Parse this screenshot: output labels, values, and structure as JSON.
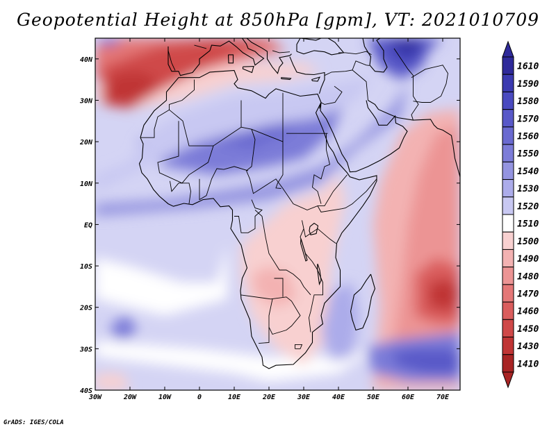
{
  "title": "Geopotential Height at 850hPa [gpm], VT: 2021010709",
  "credit": "GrADS: IGES/COLA",
  "map": {
    "lon_range": [
      -30,
      75
    ],
    "lat_range": [
      -40,
      45
    ],
    "variable": "geopotential height at 850hPa",
    "units": "gpm",
    "valid_time": "2021010709",
    "lon_ticks": [
      {
        "value": -30,
        "label": "30W"
      },
      {
        "value": -20,
        "label": "20W"
      },
      {
        "value": -10,
        "label": "10W"
      },
      {
        "value": 0,
        "label": "0"
      },
      {
        "value": 10,
        "label": "10E"
      },
      {
        "value": 20,
        "label": "20E"
      },
      {
        "value": 30,
        "label": "30E"
      },
      {
        "value": 40,
        "label": "40E"
      },
      {
        "value": 50,
        "label": "50E"
      },
      {
        "value": 60,
        "label": "60E"
      },
      {
        "value": 70,
        "label": "70E"
      }
    ],
    "lat_ticks": [
      {
        "value": 40,
        "label": "40N"
      },
      {
        "value": 30,
        "label": "30N"
      },
      {
        "value": 20,
        "label": "20N"
      },
      {
        "value": 10,
        "label": "10N"
      },
      {
        "value": 0,
        "label": "EQ"
      },
      {
        "value": -10,
        "label": "10S"
      },
      {
        "value": -20,
        "label": "20S"
      },
      {
        "value": -30,
        "label": "30S"
      },
      {
        "value": -40,
        "label": "40S"
      }
    ],
    "features": [
      {
        "name": "high-center-middle-east",
        "lon": 59,
        "lat": 42,
        "value": 1610
      },
      {
        "name": "high-belt-sahara",
        "lon": 15,
        "lat": 22,
        "value": 1560
      },
      {
        "name": "low-belt-mediterranean",
        "lon": 0,
        "lat": 36,
        "value": 1450
      },
      {
        "name": "low-center-atlantic-northwest",
        "lon": -20,
        "lat": 31,
        "value": 1430
      },
      {
        "name": "low-center-indian-ocean",
        "lon": 70,
        "lat": -17,
        "value": 1410
      },
      {
        "name": "low-zone-arabian-sea",
        "lon": 65,
        "lat": 12,
        "value": 1490
      },
      {
        "name": "high-zone-south-indian",
        "lon": 65,
        "lat": -32,
        "value": 1560
      },
      {
        "name": "high-patch-south-atlantic",
        "lon": -23,
        "lat": -25,
        "value": 1540
      },
      {
        "name": "low-patch-southern-africa",
        "lon": 20,
        "lat": -15,
        "value": 1490
      }
    ]
  },
  "colorbar": {
    "values": [
      "1610",
      "1590",
      "1580",
      "1570",
      "1560",
      "1550",
      "1540",
      "1530",
      "1520",
      "1510",
      "1500",
      "1490",
      "1480",
      "1470",
      "1460",
      "1450",
      "1430",
      "1410"
    ],
    "colors": [
      "#2f2a9a",
      "#3b3ab0",
      "#4a4ac0",
      "#5858c8",
      "#6a6ad0",
      "#7c7cd8",
      "#9494e0",
      "#acacea",
      "#c8c8f2",
      "#ffffff",
      "#f8d0d0",
      "#f3b2b2",
      "#ec9494",
      "#e47777",
      "#da5d5d",
      "#cf4848",
      "#c03535",
      "#a82424"
    ]
  }
}
